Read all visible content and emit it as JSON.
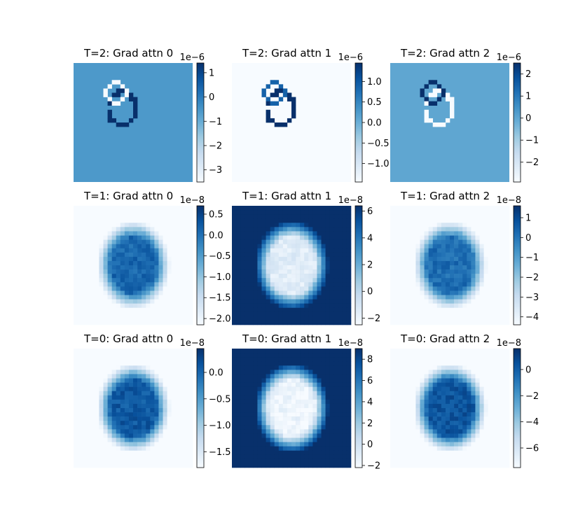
{
  "chart_data": {
    "type": "heatmap",
    "colormap": "Blues",
    "grid": false,
    "layout": "3x3",
    "panels": [
      {
        "title": "T=2: Grad attn 0",
        "cbar_offset": "1e−6",
        "vmin": -3.5,
        "vmax": 1.4,
        "cbar_ticks": [
          1,
          0,
          -1,
          -2,
          -3
        ],
        "cbar_tick_labels": [
          "1",
          "0",
          "−1",
          "−2",
          "−3"
        ],
        "background": -0.6,
        "ring_upper": -3.5,
        "ring_lower": 1.4
      },
      {
        "title": "T=2: Grad attn 1",
        "cbar_offset": "1e−6",
        "vmin": -1.45,
        "vmax": 1.45,
        "cbar_ticks": [
          1.0,
          0.5,
          0.0,
          -0.5,
          -1.0
        ],
        "cbar_tick_labels": [
          "1.0",
          "0.5",
          "0.0",
          "−0.5",
          "−1.0"
        ],
        "background": -1.45,
        "ring_upper": 0.9,
        "ring_lower": 1.45
      },
      {
        "title": "T=2: Grad attn 2",
        "cbar_offset": "1e−6",
        "vmin": -2.9,
        "vmax": 2.5,
        "cbar_ticks": [
          2,
          1,
          0,
          -1,
          -2
        ],
        "cbar_tick_labels": [
          "2",
          "1",
          "0",
          "−1",
          "−2"
        ],
        "background": 0.0,
        "ring_upper": 2.5,
        "ring_lower": -2.9
      },
      {
        "title": "T=1: Grad attn 0",
        "cbar_offset": "1e−8",
        "vmin": -2.15,
        "vmax": 0.7,
        "cbar_ticks": [
          0.5,
          0.0,
          -0.5,
          -1.0,
          -1.5,
          -2.0
        ],
        "cbar_tick_labels": [
          "0.5",
          "0.0",
          "−0.5",
          "−1.0",
          "−1.5",
          "−2.0"
        ],
        "background": -2.15,
        "interior": 0.1
      },
      {
        "title": "T=1: Grad attn 1",
        "cbar_offset": "1e−8",
        "vmin": -2.5,
        "vmax": 6.4,
        "cbar_ticks": [
          6,
          4,
          2,
          0,
          -2
        ],
        "cbar_tick_labels": [
          "6",
          "4",
          "2",
          "0",
          "−2"
        ],
        "background": 6.4,
        "interior": -1.5
      },
      {
        "title": "T=1: Grad attn 2",
        "cbar_offset": "1e−8",
        "vmin": -4.4,
        "vmax": 1.6,
        "cbar_ticks": [
          1,
          0,
          -1,
          -2,
          -3,
          -4
        ],
        "cbar_tick_labels": [
          "1",
          "0",
          "−1",
          "−2",
          "−3",
          "−4"
        ],
        "background": -4.4,
        "interior": 0.2
      },
      {
        "title": "T=0: Grad attn 0",
        "cbar_offset": "1e−8",
        "vmin": -1.8,
        "vmax": 0.45,
        "cbar_ticks": [
          0.0,
          -0.5,
          -1.0,
          -1.5
        ],
        "cbar_tick_labels": [
          "0.0",
          "−0.5",
          "−1.0",
          "−1.5"
        ],
        "background": -1.8,
        "interior": 0.1
      },
      {
        "title": "T=0: Grad attn 1",
        "cbar_offset": "1e−8",
        "vmin": -2.2,
        "vmax": 9.0,
        "cbar_ticks": [
          8,
          6,
          4,
          2,
          0,
          -2
        ],
        "cbar_tick_labels": [
          "8",
          "6",
          "4",
          "2",
          "0",
          "−2"
        ],
        "background": 9.0,
        "interior": -1.7
      },
      {
        "title": "T=0: Grad attn 2",
        "cbar_offset": "1e−8",
        "vmin": -7.5,
        "vmax": 1.6,
        "cbar_ticks": [
          0,
          -2,
          -4,
          -6
        ],
        "cbar_tick_labels": [
          "0",
          "−2",
          "−4",
          "−6"
        ],
        "background": -7.5,
        "interior": 0.3
      }
    ]
  }
}
